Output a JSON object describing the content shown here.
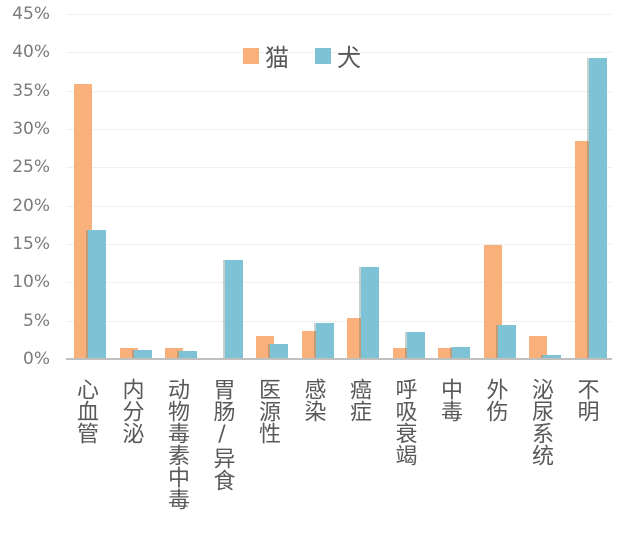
{
  "chart_data": {
    "type": "bar",
    "title": "",
    "xlabel": "",
    "ylabel": "",
    "ylim": [
      0,
      45
    ],
    "yticks": [
      "0%",
      "5%",
      "10%",
      "15%",
      "20%",
      "25%",
      "30%",
      "35%",
      "40%",
      "45%"
    ],
    "grid": true,
    "legend_position": "top",
    "categories": [
      "心血管",
      "内分泌",
      "动物毒素中毒",
      "胃肠/异食",
      "医源性",
      "感染",
      "癌症",
      "呼吸衰竭",
      "中毒",
      "外伤",
      "泌尿系统",
      "不明"
    ],
    "series": [
      {
        "name": "猫",
        "color": "#f9b07a",
        "values": [
          35.9,
          1.5,
          1.5,
          0,
          3.0,
          3.7,
          5.3,
          1.5,
          1.5,
          14.9,
          3.0,
          28.4
        ]
      },
      {
        "name": "犬",
        "color": "#7ec2d6",
        "values": [
          16.8,
          1.2,
          1.0,
          12.9,
          2.0,
          4.7,
          12.0,
          3.5,
          1.6,
          4.5,
          0.5,
          39.2
        ]
      }
    ]
  },
  "legend": {
    "items": [
      {
        "label": "猫",
        "color": "#f9b07a"
      },
      {
        "label": "犬",
        "color": "#7ec2d6"
      }
    ]
  }
}
